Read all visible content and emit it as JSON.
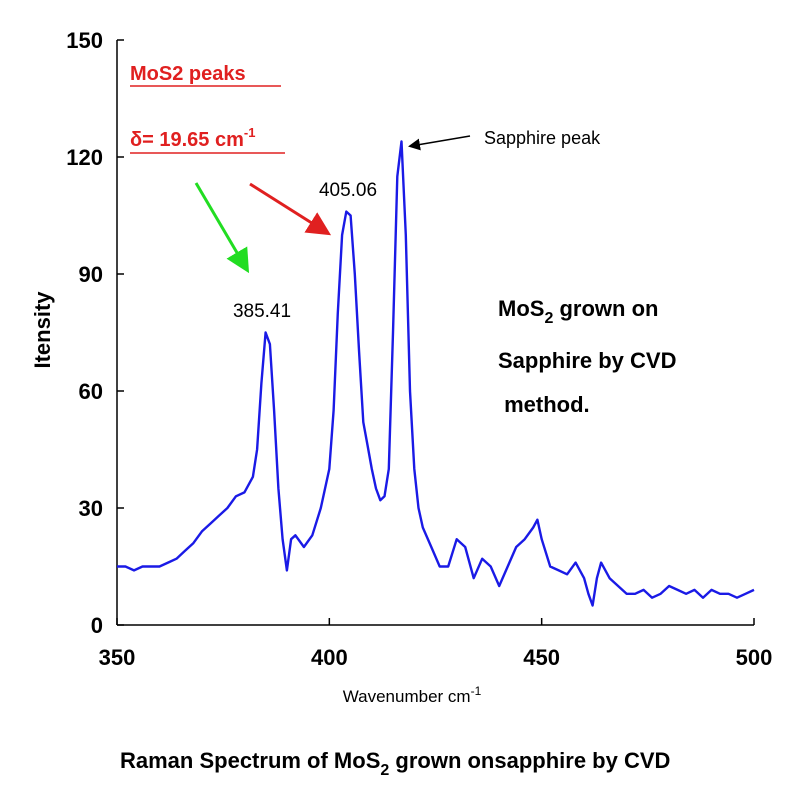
{
  "chart_data": {
    "type": "line",
    "ylabel": "Itensity",
    "xlabel_main": "Wavenumber cm",
    "xlabel_sup": "-1",
    "xlim": [
      350,
      500
    ],
    "ylim": [
      0,
      150
    ],
    "x_ticks": [
      "350",
      "400",
      "450",
      "500"
    ],
    "y_ticks": [
      "0",
      "30",
      "60",
      "90",
      "120",
      "150"
    ],
    "grid": false,
    "line_color": "#1a1ae6",
    "series": [
      {
        "x": [
          350,
          352,
          354,
          356,
          358,
          360,
          362,
          364,
          366,
          368,
          370,
          372,
          374,
          376,
          378,
          380,
          382,
          383,
          384,
          385,
          386,
          387,
          388,
          389,
          390,
          391,
          392,
          394,
          396,
          398,
          400,
          401,
          402,
          403,
          404,
          405,
          406,
          407,
          408,
          409,
          410,
          411,
          412,
          413,
          414,
          415,
          416,
          417,
          418,
          419,
          420,
          421,
          422,
          424,
          426,
          428,
          430,
          432,
          434,
          436,
          438,
          440,
          442,
          444,
          446,
          448,
          449,
          450,
          452,
          454,
          456,
          458,
          460,
          461,
          462,
          463,
          464,
          466,
          468,
          470,
          472,
          474,
          476,
          478,
          480,
          482,
          484,
          486,
          488,
          490,
          492,
          494,
          496,
          498,
          500
        ],
        "y": [
          15,
          15,
          14,
          15,
          15,
          15,
          16,
          17,
          19,
          21,
          24,
          26,
          28,
          30,
          33,
          34,
          38,
          45,
          62,
          75,
          72,
          55,
          35,
          22,
          14,
          22,
          23,
          20,
          23,
          30,
          40,
          55,
          80,
          100,
          106,
          105,
          90,
          70,
          52,
          46,
          40,
          35,
          32,
          33,
          40,
          75,
          115,
          124,
          100,
          60,
          40,
          30,
          25,
          20,
          15,
          15,
          22,
          20,
          12,
          17,
          15,
          10,
          15,
          20,
          22,
          25,
          27,
          22,
          15,
          14,
          13,
          16,
          12,
          8,
          5,
          12,
          16,
          12,
          10,
          8,
          8,
          9,
          7,
          8,
          10,
          9,
          8,
          9,
          7,
          9,
          8,
          8,
          7,
          8,
          9
        ]
      }
    ],
    "annotations": {
      "mos2_peaks": "MoS2 peaks",
      "delta_main": "δ= 19.65 cm",
      "delta_sup": "-1",
      "peak1": "385.41",
      "peak2": "405.06",
      "sapphire": "Sapphire peak",
      "note_line1_pre": "MoS",
      "note_line1_sub": "2",
      "note_line1_post": " grown on",
      "note_line2": "Sapphire by CVD",
      "note_line3": " method."
    },
    "caption_pre": "Raman Spectrum of MoS",
    "caption_sub": "2",
    "caption_post": " grown onsapphire by CVD"
  }
}
